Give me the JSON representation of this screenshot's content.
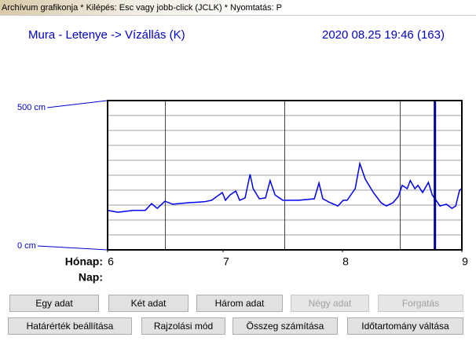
{
  "header": {
    "title": "Archívum grafikonja * Kilépés: Esc vagy jobb-click (JCLK) * Nyomtatás: P"
  },
  "chart_data": {
    "type": "line",
    "title": "Mura - Letenye -> Vízállás (K)",
    "timestamp": "2020 08.25 19:46   (163)",
    "x_label": "Hónap:",
    "x_label2": "Nap:",
    "color": "#0000ee",
    "x": [
      0,
      2.7,
      6.7,
      9.8,
      11.4,
      12.9,
      14.9,
      16.9,
      21,
      25.1,
      27,
      29.8,
      30.6,
      31.8,
      33.3,
      34.3,
      35.7,
      37,
      37.8,
      39.4,
      41,
      42.2,
      43.5,
      45.5,
      49.6,
      53.7,
      54.9,
      55.9,
      57.8,
      59.8,
      61.2,
      62.2,
      64.3,
      65.5,
      66.9,
      69,
      71,
      72.4,
      74.1,
      75.5,
      76.5,
      77.8,
      78.6,
      79.8,
      80.6,
      81.8,
      83.3,
      84.3,
      85.3,
      86.3,
      88,
      89.4,
      90.4,
      91.4,
      92
    ],
    "values": [
      132,
      126,
      132,
      132,
      155,
      139,
      163,
      153,
      158,
      161,
      166,
      192,
      166,
      184,
      197,
      166,
      174,
      253,
      205,
      171,
      174,
      232,
      184,
      166,
      166,
      171,
      224,
      171,
      158,
      147,
      166,
      166,
      205,
      289,
      237,
      192,
      158,
      147,
      158,
      179,
      216,
      205,
      232,
      205,
      216,
      192,
      226,
      184,
      166,
      147,
      153,
      139,
      147,
      200,
      205
    ],
    "xlim": [
      0,
      92
    ],
    "xticks": [
      {
        "value": 0,
        "label": "6"
      },
      {
        "value": 30,
        "label": "7"
      },
      {
        "value": 61,
        "label": "8"
      },
      {
        "value": 92,
        "label": "9"
      }
    ],
    "xgrid": [
      15,
      46,
      76
    ],
    "ylim": [
      0,
      500
    ],
    "yticks": [
      {
        "value": 0,
        "label": "0 cm"
      },
      {
        "value": 500,
        "label": "500 cm"
      }
    ],
    "ygrid": [
      50,
      100,
      150,
      200,
      250,
      300,
      350,
      400,
      450
    ],
    "current_x": 85
  },
  "buttons": [
    {
      "label": "Egy adat",
      "enabled": true
    },
    {
      "label": "Két adat",
      "enabled": true
    },
    {
      "label": "Három adat",
      "enabled": true
    },
    {
      "label": "Négy adat",
      "enabled": false
    },
    {
      "label": "Forgatás",
      "enabled": false
    },
    {
      "label": "Határérték beállítása",
      "enabled": true
    },
    {
      "label": "Rajzolási mód",
      "enabled": true
    },
    {
      "label": "Összeg számítása",
      "enabled": true
    },
    {
      "label": "Időtartomány váltása",
      "enabled": true
    }
  ]
}
